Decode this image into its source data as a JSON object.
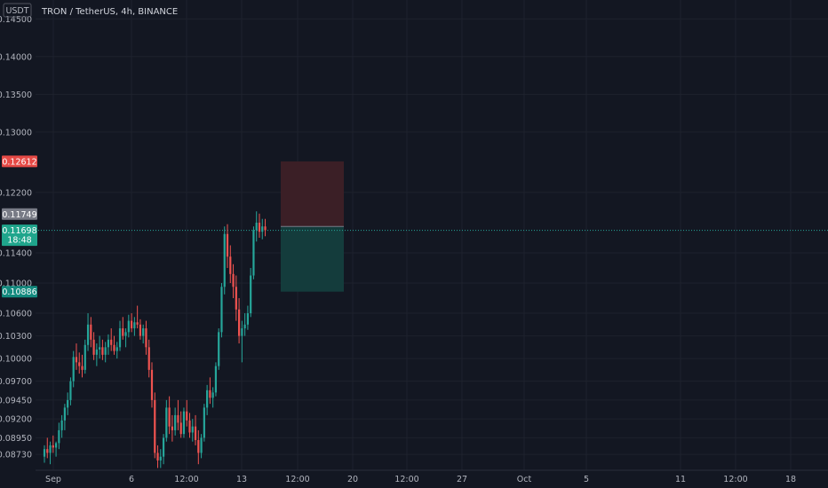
{
  "title": "TRON / TetherUS, 4h, BINANCE",
  "currency_label": "USDT",
  "colors": {
    "background": "#131722",
    "grid": "#1e222d",
    "up": "#26a69a",
    "down": "#ef5350",
    "text": "#b2b5be",
    "stop_zone": "#3b1f26",
    "target_zone": "#143c3c",
    "price_line": "#26a69a",
    "stop_badge": "#e64a46",
    "target_badge": "#138a7e",
    "entry_badge": "#787b86",
    "last_badge": "#1fa58c"
  },
  "badges": {
    "stop": "0.12612",
    "entry": "0.11749",
    "last": "0.11698",
    "countdown": "18:48",
    "target": "0.10886"
  },
  "chart_data": {
    "type": "candlestick",
    "title": "TRON / TetherUS, 4h, BINANCE",
    "ylabel": "USDT",
    "ylim": [
      0.0852,
      0.1475
    ],
    "y_ticks": [
      "0.14500",
      "0.14000",
      "0.13500",
      "0.13000",
      "0.12200",
      "0.11400",
      "0.11000",
      "0.10600",
      "0.10300",
      "0.10000",
      "0.09700",
      "0.09450",
      "0.09200",
      "0.08950",
      "0.08730"
    ],
    "x_ticks": [
      "Sep",
      "6",
      "12:00",
      "13",
      "12:00",
      "20",
      "12:00",
      "27",
      "Oct",
      "5",
      "11",
      "12:00",
      "18"
    ],
    "candles": [
      [
        0.087,
        0.0885,
        0.0862,
        0.088
      ],
      [
        0.088,
        0.0895,
        0.0868,
        0.0875
      ],
      [
        0.0875,
        0.089,
        0.086,
        0.0885
      ],
      [
        0.0885,
        0.0898,
        0.0875,
        0.0882
      ],
      [
        0.0882,
        0.089,
        0.087,
        0.0888
      ],
      [
        0.0888,
        0.0915,
        0.088,
        0.0905
      ],
      [
        0.0905,
        0.0925,
        0.0895,
        0.0918
      ],
      [
        0.0918,
        0.094,
        0.0905,
        0.0935
      ],
      [
        0.0935,
        0.0955,
        0.0925,
        0.0945
      ],
      [
        0.0945,
        0.0975,
        0.0938,
        0.097
      ],
      [
        0.097,
        0.101,
        0.0962,
        0.1002
      ],
      [
        0.1002,
        0.102,
        0.0985,
        0.0995
      ],
      [
        0.0995,
        0.1008,
        0.098,
        0.099
      ],
      [
        0.099,
        0.1005,
        0.0975,
        0.0985
      ],
      [
        0.0985,
        0.1025,
        0.098,
        0.1018
      ],
      [
        0.1018,
        0.106,
        0.101,
        0.1045
      ],
      [
        0.1045,
        0.1055,
        0.1015,
        0.1025
      ],
      [
        0.1025,
        0.1035,
        0.0998,
        0.1005
      ],
      [
        0.1005,
        0.102,
        0.099,
        0.1012
      ],
      [
        0.1012,
        0.103,
        0.1,
        0.1015
      ],
      [
        0.1015,
        0.1025,
        0.0998,
        0.1005
      ],
      [
        0.1005,
        0.1022,
        0.0995,
        0.1015
      ],
      [
        0.1015,
        0.1032,
        0.1005,
        0.1025
      ],
      [
        0.1025,
        0.104,
        0.101,
        0.1018
      ],
      [
        0.1018,
        0.103,
        0.1005,
        0.101
      ],
      [
        0.101,
        0.1022,
        0.1,
        0.1015
      ],
      [
        0.1015,
        0.105,
        0.101,
        0.104
      ],
      [
        0.104,
        0.1055,
        0.1025,
        0.103
      ],
      [
        0.103,
        0.104,
        0.1015,
        0.1035
      ],
      [
        0.1035,
        0.1058,
        0.1028,
        0.105
      ],
      [
        0.105,
        0.106,
        0.1035,
        0.104
      ],
      [
        0.104,
        0.1055,
        0.103,
        0.1048
      ],
      [
        0.1048,
        0.107,
        0.104,
        0.1045
      ],
      [
        0.1045,
        0.1052,
        0.1025,
        0.103
      ],
      [
        0.103,
        0.1045,
        0.102,
        0.104
      ],
      [
        0.104,
        0.105,
        0.1005,
        0.1015
      ],
      [
        0.1015,
        0.1025,
        0.0975,
        0.0985
      ],
      [
        0.0985,
        0.0995,
        0.0935,
        0.0945
      ],
      [
        0.0945,
        0.0955,
        0.0868,
        0.0875
      ],
      [
        0.0875,
        0.0885,
        0.0855,
        0.0865
      ],
      [
        0.0865,
        0.088,
        0.0855,
        0.087
      ],
      [
        0.087,
        0.09,
        0.086,
        0.0895
      ],
      [
        0.0895,
        0.0945,
        0.089,
        0.0935
      ],
      [
        0.0935,
        0.095,
        0.09,
        0.091
      ],
      [
        0.091,
        0.0925,
        0.089,
        0.0905
      ],
      [
        0.0905,
        0.0935,
        0.0898,
        0.0925
      ],
      [
        0.0925,
        0.0945,
        0.0905,
        0.0915
      ],
      [
        0.0915,
        0.093,
        0.0895,
        0.09
      ],
      [
        0.09,
        0.0935,
        0.0895,
        0.093
      ],
      [
        0.093,
        0.0945,
        0.091,
        0.0918
      ],
      [
        0.0918,
        0.0928,
        0.0895,
        0.0902
      ],
      [
        0.0902,
        0.092,
        0.089,
        0.091
      ],
      [
        0.091,
        0.0925,
        0.0885,
        0.0892
      ],
      [
        0.0892,
        0.0905,
        0.086,
        0.0875
      ],
      [
        0.0875,
        0.09,
        0.0868,
        0.0895
      ],
      [
        0.0895,
        0.094,
        0.089,
        0.0935
      ],
      [
        0.0935,
        0.0965,
        0.0925,
        0.0958
      ],
      [
        0.0958,
        0.0975,
        0.094,
        0.0948
      ],
      [
        0.0948,
        0.0962,
        0.0935,
        0.0955
      ],
      [
        0.0955,
        0.0995,
        0.095,
        0.099
      ],
      [
        0.099,
        0.104,
        0.0985,
        0.1035
      ],
      [
        0.1035,
        0.11,
        0.1028,
        0.1095
      ],
      [
        0.1095,
        0.1175,
        0.1085,
        0.1165
      ],
      [
        0.1165,
        0.1178,
        0.112,
        0.1135
      ],
      [
        0.1135,
        0.115,
        0.11,
        0.1112
      ],
      [
        0.1112,
        0.1125,
        0.108,
        0.1095
      ],
      [
        0.1095,
        0.111,
        0.105,
        0.1065
      ],
      [
        0.1065,
        0.108,
        0.102,
        0.103
      ],
      [
        0.103,
        0.105,
        0.0995,
        0.104
      ],
      [
        0.104,
        0.106,
        0.103,
        0.1045
      ],
      [
        0.1045,
        0.107,
        0.1038,
        0.106
      ],
      [
        0.106,
        0.112,
        0.1055,
        0.111
      ],
      [
        0.111,
        0.1175,
        0.1105,
        0.117
      ],
      [
        0.117,
        0.1195,
        0.1155,
        0.118
      ],
      [
        0.118,
        0.1192,
        0.116,
        0.1168
      ],
      [
        0.1168,
        0.1185,
        0.1158,
        0.1175
      ],
      [
        0.1175,
        0.1185,
        0.1162,
        0.117
      ]
    ],
    "position": {
      "entry": 0.11749,
      "stop": 0.12612,
      "target": 0.10886
    },
    "last_price": 0.11698,
    "grid": true
  }
}
